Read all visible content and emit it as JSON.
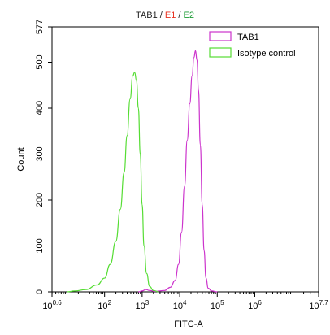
{
  "colors": {
    "tab1": "#cc33cc",
    "isotype": "#55dd33",
    "e1": "#e8311f",
    "e2": "#1a9a33",
    "axis": "#000000"
  },
  "chart_data": {
    "type": "line",
    "title": {
      "parts": [
        {
          "text": "TAB1",
          "color": "#222222"
        },
        {
          "text": " / ",
          "color": "#222222"
        },
        {
          "text": "E1",
          "color": "#e8311f"
        },
        {
          "text": " / ",
          "color": "#222222"
        },
        {
          "text": "E2",
          "color": "#1a9a33"
        }
      ]
    },
    "xlabel": "FITC-A",
    "ylabel": "Count",
    "x_scale": "log10",
    "xlim_log10": [
      0.6,
      7.7
    ],
    "ylim": [
      0,
      577
    ],
    "x_ticks": [
      {
        "exp": 0.6,
        "label_base": "10",
        "label_exp": "0.6"
      },
      {
        "exp": 2,
        "label_base": "10",
        "label_exp": "2"
      },
      {
        "exp": 3,
        "label_base": "10",
        "label_exp": "3"
      },
      {
        "exp": 4,
        "label_base": "10",
        "label_exp": "4"
      },
      {
        "exp": 5,
        "label_base": "10",
        "label_exp": "5"
      },
      {
        "exp": 6,
        "label_base": "10",
        "label_exp": "6"
      },
      {
        "exp": 7.7,
        "label_base": "10",
        "label_exp": "7.7"
      }
    ],
    "y_ticks": [
      {
        "value": 0,
        "label": "0"
      },
      {
        "value": 100,
        "label": "100"
      },
      {
        "value": 200,
        "label": "200"
      },
      {
        "value": 300,
        "label": "300"
      },
      {
        "value": 400,
        "label": "400"
      },
      {
        "value": 500,
        "label": "500"
      },
      {
        "value": 577,
        "label": "577"
      }
    ],
    "legend_position": "top-right",
    "series": [
      {
        "name": "TAB1",
        "color": "#cc33cc",
        "points": [
          [
            2.9,
            0
          ],
          [
            3.0,
            2
          ],
          [
            3.1,
            5
          ],
          [
            3.2,
            3
          ],
          [
            3.35,
            1
          ],
          [
            3.6,
            3
          ],
          [
            3.75,
            10
          ],
          [
            3.88,
            25
          ],
          [
            3.97,
            60
          ],
          [
            4.05,
            130
          ],
          [
            4.13,
            230
          ],
          [
            4.2,
            330
          ],
          [
            4.27,
            410
          ],
          [
            4.33,
            470
          ],
          [
            4.38,
            510
          ],
          [
            4.42,
            525
          ],
          [
            4.46,
            505
          ],
          [
            4.5,
            440
          ],
          [
            4.55,
            320
          ],
          [
            4.6,
            190
          ],
          [
            4.65,
            90
          ],
          [
            4.7,
            30
          ],
          [
            4.76,
            8
          ],
          [
            4.85,
            2
          ],
          [
            5.0,
            0
          ]
        ]
      },
      {
        "name": "Isotype control",
        "color": "#55dd33",
        "points": [
          [
            1.0,
            0
          ],
          [
            1.2,
            2
          ],
          [
            1.5,
            5
          ],
          [
            1.8,
            15
          ],
          [
            2.0,
            30
          ],
          [
            2.15,
            60
          ],
          [
            2.3,
            110
          ],
          [
            2.42,
            180
          ],
          [
            2.52,
            260
          ],
          [
            2.6,
            340
          ],
          [
            2.68,
            420
          ],
          [
            2.75,
            470
          ],
          [
            2.8,
            478
          ],
          [
            2.85,
            460
          ],
          [
            2.9,
            400
          ],
          [
            2.95,
            300
          ],
          [
            3.0,
            190
          ],
          [
            3.05,
            100
          ],
          [
            3.12,
            40
          ],
          [
            3.2,
            12
          ],
          [
            3.3,
            3
          ],
          [
            3.45,
            0
          ]
        ]
      }
    ]
  }
}
